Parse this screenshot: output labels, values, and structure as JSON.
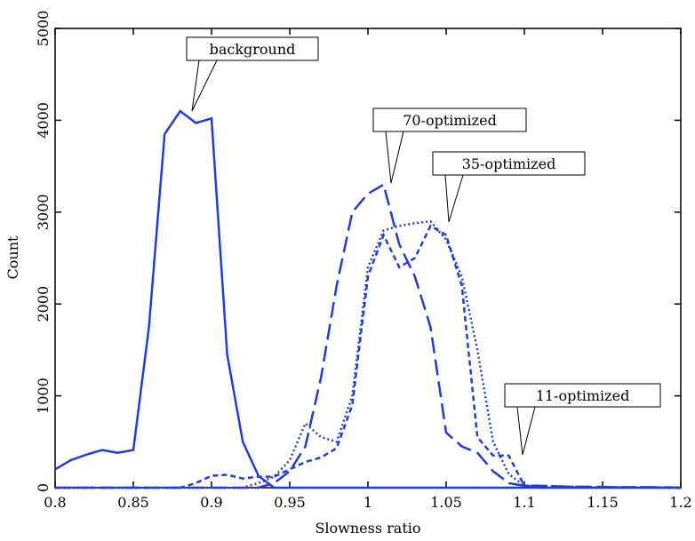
{
  "chart_data": {
    "type": "line",
    "xlabel": "Slowness ratio",
    "ylabel": "Count",
    "x": [
      0.8,
      0.81,
      0.82,
      0.83,
      0.84,
      0.85,
      0.86,
      0.87,
      0.88,
      0.89,
      0.9,
      0.91,
      0.92,
      0.93,
      0.94,
      0.95,
      0.96,
      0.97,
      0.98,
      0.99,
      1.0,
      1.01,
      1.02,
      1.03,
      1.04,
      1.05,
      1.06,
      1.07,
      1.08,
      1.09,
      1.1,
      1.11,
      1.12,
      1.13,
      1.14,
      1.15,
      1.16,
      1.17,
      1.18,
      1.19,
      1.2
    ],
    "series": [
      {
        "name": "background",
        "color": "#1f3ddd",
        "linestyle": "solid",
        "values": [
          200,
          300,
          360,
          410,
          380,
          410,
          1750,
          3850,
          4100,
          3970,
          4020,
          1450,
          500,
          130,
          0,
          0,
          0,
          0,
          0,
          0,
          0,
          0,
          0,
          0,
          0,
          0,
          0,
          0,
          0,
          0,
          0,
          0,
          0,
          0,
          0,
          0,
          0,
          0,
          0,
          0,
          0
        ]
      },
      {
        "name": "70-optimized",
        "color": "#1f3ddd",
        "linestyle": "long-dash",
        "values": [
          0,
          0,
          0,
          0,
          0,
          0,
          0,
          0,
          0,
          0,
          0,
          0,
          0,
          0,
          50,
          180,
          450,
          1200,
          2200,
          3000,
          3200,
          3300,
          2650,
          2300,
          1750,
          600,
          450,
          380,
          180,
          50,
          20,
          20,
          15,
          10,
          10,
          10,
          5,
          5,
          5,
          5,
          0
        ]
      },
      {
        "name": "35-optimized",
        "color": "#1f3ddd",
        "linestyle": "dash",
        "values": [
          0,
          0,
          0,
          0,
          0,
          0,
          0,
          0,
          0,
          50,
          130,
          140,
          100,
          120,
          120,
          200,
          280,
          330,
          430,
          900,
          2300,
          2750,
          2400,
          2500,
          2850,
          2750,
          2200,
          550,
          350,
          350,
          20,
          20,
          15,
          10,
          10,
          5,
          5,
          5,
          5,
          0,
          0
        ]
      },
      {
        "name": "11-optimized",
        "color": "#1f3ddd",
        "linestyle": "dotted",
        "values": [
          0,
          0,
          0,
          0,
          0,
          0,
          0,
          0,
          0,
          0,
          0,
          0,
          0,
          50,
          120,
          300,
          700,
          550,
          500,
          1000,
          2400,
          2800,
          2850,
          2880,
          2900,
          2700,
          2300,
          1500,
          500,
          150,
          20,
          0,
          0,
          0,
          0,
          0,
          0,
          0,
          0,
          0,
          0
        ]
      }
    ],
    "xlim": [
      0.8,
      1.2
    ],
    "xticks": [
      0.8,
      0.85,
      0.9,
      0.95,
      1,
      1.05,
      1.1,
      1.15,
      1.2
    ],
    "ylim": [
      0,
      5000
    ],
    "yticks": [
      0,
      1000,
      2000,
      3000,
      4000,
      5000
    ]
  }
}
